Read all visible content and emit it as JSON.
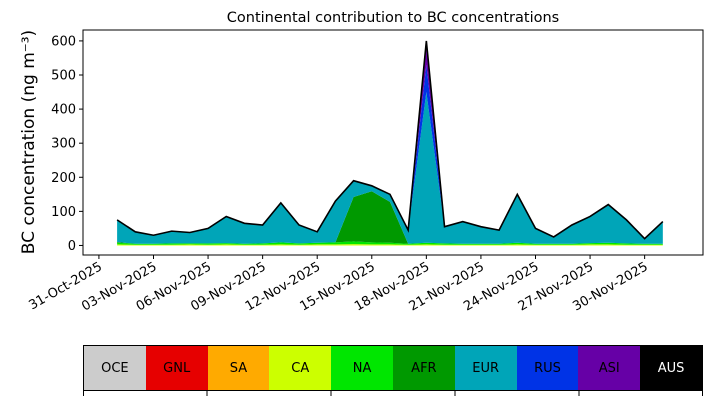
{
  "chart_data": {
    "type": "area",
    "stacked": true,
    "title": "Continental contribution to BC concentrations",
    "xlabel": "",
    "ylabel": "BC concentration (ng m⁻³)",
    "ylim": [
      -28,
      632
    ],
    "yticks": [
      0,
      100,
      200,
      300,
      400,
      500,
      600
    ],
    "xlim": [
      "2025-10-30T03:00",
      "2025-12-03T05:00"
    ],
    "xticks": [
      "31-Oct-2025",
      "03-Nov-2025",
      "06-Nov-2025",
      "09-Nov-2025",
      "12-Nov-2025",
      "15-Nov-2025",
      "18-Nov-2025",
      "21-Nov-2025",
      "24-Nov-2025",
      "27-Nov-2025",
      "30-Nov-2025"
    ],
    "x": [
      "2025-11-01",
      "2025-11-02",
      "2025-11-03",
      "2025-11-04",
      "2025-11-05",
      "2025-11-06",
      "2025-11-07",
      "2025-11-08",
      "2025-11-09",
      "2025-11-10",
      "2025-11-11",
      "2025-11-12",
      "2025-11-13",
      "2025-11-14",
      "2025-11-15",
      "2025-11-16",
      "2025-11-17",
      "2025-11-18",
      "2025-11-19",
      "2025-11-20",
      "2025-11-21",
      "2025-11-22",
      "2025-11-23",
      "2025-11-24",
      "2025-11-25",
      "2025-11-26",
      "2025-11-27",
      "2025-11-28",
      "2025-11-29",
      "2025-11-30",
      "2025-12-01"
    ],
    "total": [
      75,
      40,
      30,
      42,
      38,
      50,
      85,
      65,
      60,
      125,
      60,
      40,
      130,
      190,
      175,
      150,
      45,
      600,
      55,
      70,
      55,
      45,
      150,
      50,
      25,
      60,
      85,
      120,
      75,
      20,
      70
    ],
    "series": [
      {
        "name": "OCE",
        "color": "#cccccc",
        "values": [
          0,
          0,
          0,
          0,
          0,
          0,
          0,
          0,
          0,
          0,
          0,
          0,
          0,
          0,
          0,
          0,
          0,
          0,
          0,
          0,
          0,
          0,
          0,
          0,
          0,
          0,
          0,
          0,
          0,
          0,
          0
        ]
      },
      {
        "name": "GNL",
        "color": "#e60000",
        "values": [
          0,
          0,
          0,
          0,
          0,
          0,
          0,
          0,
          0,
          0,
          0,
          0,
          0,
          0,
          0,
          0,
          0,
          0,
          0,
          0,
          0,
          0,
          0,
          0,
          0,
          0,
          0,
          0,
          0,
          0,
          0
        ]
      },
      {
        "name": "SA",
        "color": "#ffaa00",
        "values": [
          0,
          0,
          0,
          0,
          0,
          0,
          0,
          0,
          0,
          0,
          0,
          0,
          0,
          0,
          0,
          0,
          0,
          0,
          0,
          0,
          0,
          0,
          0,
          0,
          0,
          0,
          0,
          0,
          0,
          0,
          0
        ]
      },
      {
        "name": "CA",
        "color": "#ccff00",
        "values": [
          3,
          2,
          2,
          2,
          3,
          2,
          3,
          2,
          2,
          3,
          2,
          3,
          3,
          4,
          3,
          3,
          2,
          3,
          2,
          2,
          2,
          2,
          3,
          2,
          2,
          2,
          3,
          3,
          2,
          2,
          2
        ]
      },
      {
        "name": "NA",
        "color": "#00e600",
        "values": [
          5,
          3,
          3,
          4,
          3,
          4,
          4,
          3,
          4,
          6,
          4,
          5,
          6,
          8,
          6,
          5,
          3,
          5,
          4,
          3,
          3,
          3,
          5,
          3,
          3,
          3,
          4,
          5,
          4,
          3,
          3
        ]
      },
      {
        "name": "AFR",
        "color": "#009900",
        "values": [
          2,
          0,
          0,
          0,
          0,
          0,
          0,
          0,
          0,
          0,
          0,
          0,
          0,
          130,
          150,
          120,
          0,
          0,
          0,
          0,
          0,
          0,
          0,
          0,
          0,
          0,
          0,
          0,
          0,
          0,
          0
        ]
      },
      {
        "name": "EUR",
        "color": "#00a5b8",
        "values": [
          65,
          35,
          25,
          36,
          32,
          44,
          78,
          60,
          54,
          116,
          54,
          32,
          121,
          48,
          16,
          22,
          40,
          442,
          49,
          65,
          50,
          40,
          142,
          45,
          20,
          55,
          78,
          112,
          69,
          15,
          65
        ]
      },
      {
        "name": "RUS",
        "color": "#0033e6",
        "values": [
          0,
          0,
          0,
          0,
          0,
          0,
          0,
          0,
          0,
          0,
          0,
          0,
          0,
          0,
          0,
          0,
          0,
          80,
          0,
          0,
          0,
          0,
          0,
          0,
          0,
          0,
          0,
          0,
          0,
          0,
          0
        ]
      },
      {
        "name": "ASI",
        "color": "#6600a6",
        "values": [
          0,
          0,
          0,
          0,
          0,
          0,
          0,
          0,
          0,
          0,
          0,
          0,
          0,
          0,
          0,
          0,
          0,
          50,
          0,
          0,
          0,
          0,
          0,
          0,
          0,
          0,
          0,
          0,
          0,
          0,
          0
        ]
      },
      {
        "name": "AUS",
        "color": "#000000",
        "values": [
          0,
          0,
          0,
          0,
          0,
          0,
          0,
          0,
          0,
          0,
          0,
          0,
          0,
          0,
          0,
          0,
          0,
          20,
          0,
          0,
          0,
          0,
          0,
          0,
          0,
          0,
          0,
          0,
          0,
          0,
          0
        ]
      }
    ],
    "legend": "bottom",
    "legend_items": [
      {
        "name": "OCE",
        "color": "#cccccc",
        "text_color": "#000000"
      },
      {
        "name": "GNL",
        "color": "#e60000",
        "text_color": "#000000"
      },
      {
        "name": "SA",
        "color": "#ffaa00",
        "text_color": "#000000"
      },
      {
        "name": "CA",
        "color": "#ccff00",
        "text_color": "#000000"
      },
      {
        "name": "NA",
        "color": "#00e600",
        "text_color": "#000000"
      },
      {
        "name": "AFR",
        "color": "#009900",
        "text_color": "#000000"
      },
      {
        "name": "EUR",
        "color": "#00a5b8",
        "text_color": "#000000"
      },
      {
        "name": "RUS",
        "color": "#0033e6",
        "text_color": "#000000"
      },
      {
        "name": "ASI",
        "color": "#6600a6",
        "text_color": "#000000"
      },
      {
        "name": "AUS",
        "color": "#000000",
        "text_color": "#ffffff"
      }
    ],
    "grid": false
  }
}
